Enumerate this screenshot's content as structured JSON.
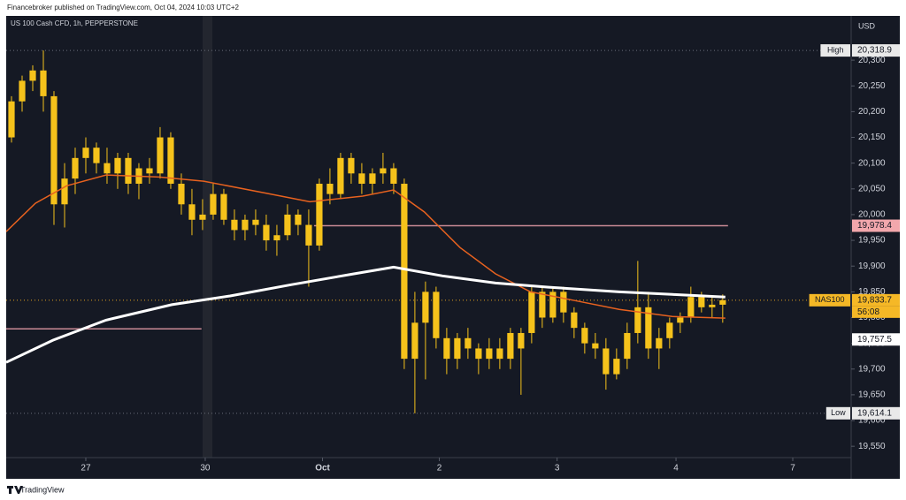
{
  "header": "Financebroker published on TradingView.com, Oct 04, 2024 10:03 UTC+2",
  "footer": "TradingView",
  "chart_data": {
    "type": "candlestick",
    "title": "US 100 Cash CFD, 1h, PEPPERSTONE",
    "currency": "USD",
    "color": "#f5c21b",
    "open": [
      20150,
      20220,
      20260,
      20280,
      20230,
      20020,
      20070,
      20110,
      20130,
      20100,
      20080,
      20110,
      20060,
      20090,
      20080,
      20150,
      20060,
      20020,
      19990,
      20000,
      20040,
      19990,
      19970,
      19990,
      19980,
      19950,
      19960,
      20000,
      19980,
      19940,
      20060,
      20040,
      20110,
      20080,
      20060,
      20080,
      20090,
      20060,
      19720,
      19790,
      19850,
      19760,
      19720,
      19760,
      19740,
      19720,
      19740,
      19720,
      19740,
      19770,
      19850,
      19800,
      19850,
      19810,
      19780,
      19750,
      19740,
      19690,
      19720,
      19770,
      19820,
      19740,
      19760,
      19790,
      19800,
      19840,
      19820,
      19825
    ],
    "high": [
      20230,
      20270,
      20290,
      20318.9,
      20240,
      20100,
      20130,
      20150,
      20140,
      20130,
      20120,
      20120,
      20100,
      20110,
      20170,
      20160,
      20080,
      20050,
      20030,
      20060,
      20050,
      20010,
      20000,
      20010,
      20000,
      19980,
      20020,
      20010,
      20010,
      20070,
      20090,
      20120,
      20120,
      20100,
      20090,
      20120,
      20100,
      20070,
      19850,
      19870,
      19860,
      19780,
      19770,
      19780,
      19750,
      19760,
      19760,
      19780,
      19780,
      19860,
      19860,
      19860,
      19860,
      19820,
      19790,
      19770,
      19760,
      19740,
      19790,
      19910,
      19850,
      19780,
      19800,
      19810,
      19860,
      19850,
      19840,
      19845
    ],
    "low": [
      20140,
      20200,
      20240,
      20200,
      19980,
      19975,
      20040,
      20080,
      20080,
      20060,
      20050,
      20040,
      20030,
      20060,
      20070,
      20050,
      20000,
      19960,
      19970,
      19990,
      19980,
      19950,
      19950,
      19960,
      19930,
      19920,
      19950,
      19960,
      19860,
      19930,
      20020,
      20030,
      20060,
      20040,
      20040,
      20060,
      20040,
      19700,
      19614.1,
      19680,
      19740,
      19690,
      19700,
      19720,
      19690,
      19700,
      19700,
      19700,
      19650,
      19750,
      19780,
      19790,
      19790,
      19760,
      19730,
      19720,
      19660,
      19680,
      19700,
      19750,
      19720,
      19700,
      19740,
      19770,
      19790,
      19810,
      19800,
      19790
    ],
    "close": [
      20220,
      20260,
      20280,
      20230,
      20020,
      20070,
      20110,
      20130,
      20100,
      20080,
      20110,
      20060,
      20090,
      20080,
      20150,
      20060,
      20020,
      19990,
      20000,
      20040,
      19990,
      19970,
      19990,
      19980,
      19950,
      19960,
      20000,
      19980,
      19940,
      20060,
      20040,
      20110,
      20080,
      20060,
      20080,
      20090,
      20060,
      19720,
      19790,
      19850,
      19760,
      19720,
      19760,
      19740,
      19720,
      19740,
      19720,
      19770,
      19770,
      19850,
      19800,
      19850,
      19810,
      19780,
      19750,
      19740,
      19690,
      19720,
      19770,
      19820,
      19740,
      19760,
      19790,
      19800,
      19840,
      19820,
      19825,
      19833.7
    ],
    "lines": [
      {
        "color": "#e8621f",
        "x": [
          0,
          2.75,
          5.7,
          9.4,
          14.4,
          18.6,
          24.4,
          28.6,
          33.6,
          36.5,
          39.4,
          42.75,
          46.1,
          49.4,
          53.6,
          57.75,
          62.75,
          67.75
        ],
        "values": [
          19967,
          20022,
          20056,
          20077,
          20073,
          20065,
          20042,
          20025,
          20036,
          20048,
          20005,
          19936,
          19885,
          19850,
          19833,
          19816,
          19802,
          19799
        ]
      },
      {
        "color": "#ffffff",
        "x": [
          0,
          4.4,
          9.4,
          15.6,
          21.1,
          26.9,
          32.75,
          36.5,
          41.1,
          46.1,
          51.1,
          57.75,
          62.75,
          67.75
        ],
        "values": [
          19713,
          19756,
          19795,
          19825,
          19842,
          19864,
          19885,
          19898,
          19881,
          19867,
          19859,
          19850,
          19845,
          19840
        ]
      }
    ],
    "levels": [
      {
        "value": 19978.4,
        "from": 29,
        "to": 68,
        "color": "#c98a95"
      },
      {
        "value": 19778,
        "from": 0,
        "to": 18.4,
        "color": "#c98a95"
      }
    ],
    "price_labels": [
      {
        "tag": "High",
        "value": 20318.9,
        "label": "20,318.9",
        "color": "#e9e9e9",
        "line": "#6b6f7a"
      },
      {
        "value": 19978.4,
        "label": "19,978.4",
        "color": "#f2a7ac"
      },
      {
        "tag": "NAS100",
        "value": 19833.7,
        "label": "19,833.7",
        "color": "#f5b826",
        "line": "#e0a020"
      },
      {
        "value": 19757.5,
        "label": "19,757.5",
        "color": "#ffffff"
      },
      {
        "tag": "Low",
        "value": 19614.1,
        "label": "19,614.1",
        "color": "#e9e9e9",
        "line": "#6b6f7a"
      }
    ],
    "countdown": "56:08",
    "xlim": [
      0,
      79.6
    ],
    "xticks": [
      {
        "value": 7.5,
        "label": "27"
      },
      {
        "value": 18.75,
        "label": "30"
      },
      {
        "value": 29.8,
        "label": "Oct"
      },
      {
        "value": 40.8,
        "label": "2"
      },
      {
        "value": 51.9,
        "label": "3"
      },
      {
        "value": 63.1,
        "label": "4"
      },
      {
        "value": 74.1,
        "label": "7"
      }
    ],
    "ylim": [
      19528,
      20386
    ],
    "yticks": [
      {
        "value": 19550,
        "label": "19,550"
      },
      {
        "value": 19600,
        "label": "19,600"
      },
      {
        "value": 19650,
        "label": "19,650"
      },
      {
        "value": 19700,
        "label": "19,700"
      },
      {
        "value": 19750,
        "label": "19,750"
      },
      {
        "value": 19800,
        "label": "19,800"
      },
      {
        "value": 19850,
        "label": "19,850"
      },
      {
        "value": 19900,
        "label": "19,900"
      },
      {
        "value": 19950,
        "label": "19,950"
      },
      {
        "value": 20000,
        "label": "20,000"
      },
      {
        "value": 20050,
        "label": "20,050"
      },
      {
        "value": 20100,
        "label": "20,100"
      },
      {
        "value": 20150,
        "label": "20,150"
      },
      {
        "value": 20200,
        "label": "20,200"
      },
      {
        "value": 20250,
        "label": "20,250"
      },
      {
        "value": 20300,
        "label": "20,300"
      }
    ],
    "grid": false
  }
}
